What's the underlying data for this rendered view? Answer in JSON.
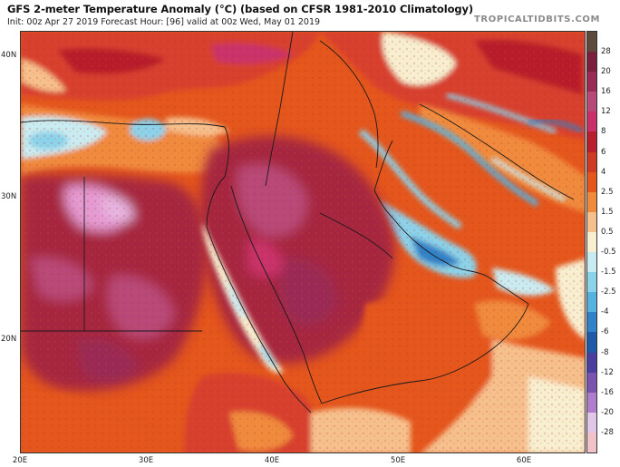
{
  "title": "GFS 2-meter Temperature Anomaly (°C) (based on CFSR 1981-2010 Climatology)",
  "subtitle": "Init: 00z Apr 27 2019   Forecast Hour: [96]   valid at 00z Wed, May 01 2019",
  "brand": "TROPICALTIDBITS.COM",
  "lat_labels": [
    "40N",
    "30N",
    "20N"
  ],
  "lon_labels": [
    "20E",
    "30E",
    "40E",
    "50E",
    "60E"
  ],
  "colorbar": {
    "labels": [
      "28",
      "20",
      "16",
      "12",
      "8",
      "6",
      "4",
      "2.5",
      "1.5",
      "0.5",
      "-0.5",
      "-1.5",
      "-2.5",
      "-4",
      "-6",
      "-8",
      "-12",
      "-16",
      "-20",
      "-28"
    ],
    "colors": [
      "#5e4a3c",
      "#7a1f3c",
      "#9a2b55",
      "#b84a78",
      "#c9306a",
      "#b81e2c",
      "#cf3a25",
      "#e4561c",
      "#f08a3c",
      "#f6c08c",
      "#f7efd0",
      "#c9ecf2",
      "#8bd3ea",
      "#56b2e0",
      "#2f82c8",
      "#1f5aa8",
      "#4a3f9e",
      "#7a52b0",
      "#b07ccc",
      "#e2c6e8",
      "#f3c2c8"
    ]
  },
  "map": {
    "theme_colors": {
      "sea_water": "#f0a27d",
      "extreme_heat": "#e49ad2",
      "strong_heat": "#a6253f",
      "moderate_heat": "#d8412e",
      "mild_heat": "#f08a3c",
      "near_normal": "#f7efd0",
      "cool": "#8bd3ea",
      "cold": "#2f82c8"
    }
  }
}
